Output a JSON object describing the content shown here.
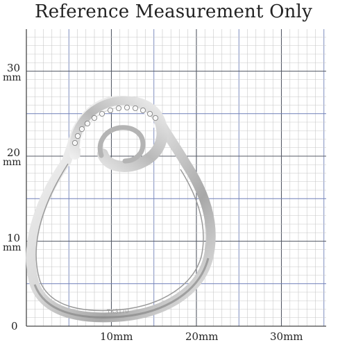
{
  "title": "Reference Measurement Only",
  "y_axis": {
    "ticks": [
      {
        "value": "30",
        "unit": "mm"
      },
      {
        "value": "20",
        "unit": "mm"
      },
      {
        "value": "10",
        "unit": "mm"
      },
      {
        "value": "0",
        "unit": ""
      }
    ]
  },
  "x_axis": {
    "ticks": [
      {
        "label": "10mm"
      },
      {
        "label": "20mm"
      },
      {
        "label": "30mm"
      }
    ]
  },
  "ring": {
    "engraving": "TK3170"
  },
  "colors": {
    "minor_grid": "#c8c8c8",
    "major_grid": "#6f7fb8",
    "axis": "#444444",
    "metal_light": "#f4f4f4",
    "metal_dark": "#8a8a8a"
  }
}
